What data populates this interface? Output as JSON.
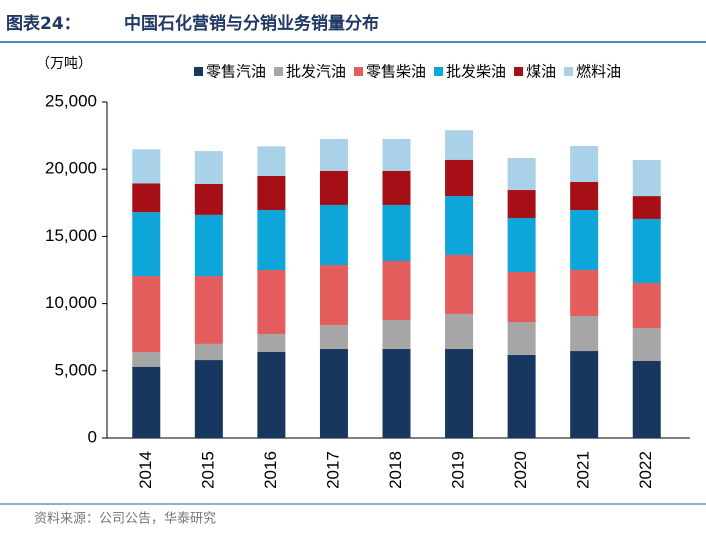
{
  "chart_data": {
    "type": "stacked_bar",
    "figure_label": "图表24：",
    "title": "中国石化营销与分销业务销量分布",
    "y_label": "（万吨）",
    "source": "资料来源：公司公告，华泰研究",
    "categories": [
      "2014",
      "2015",
      "2016",
      "2017",
      "2018",
      "2019",
      "2020",
      "2021",
      "2022"
    ],
    "series": [
      {
        "name": "零售汽油",
        "color": "#17375e",
        "values": [
          5300,
          5800,
          6400,
          6620,
          6620,
          6620,
          6180,
          6470,
          5730
        ]
      },
      {
        "name": "批发汽油",
        "color": "#a6a6a6",
        "values": [
          1100,
          1200,
          1340,
          1780,
          2160,
          2610,
          2450,
          2610,
          2450
        ]
      },
      {
        "name": "零售柴油",
        "color": "#e35d5d",
        "values": [
          5650,
          5050,
          4760,
          4470,
          4390,
          4390,
          3720,
          3420,
          3350
        ]
      },
      {
        "name": "批发柴油",
        "color": "#0ea5d9",
        "values": [
          4750,
          4550,
          4460,
          4470,
          4170,
          4380,
          4020,
          4460,
          4770
        ]
      },
      {
        "name": "煤油",
        "color": "#a50f15",
        "values": [
          2150,
          2300,
          2540,
          2530,
          2530,
          2700,
          2080,
          2090,
          1700
        ]
      },
      {
        "name": "燃料油",
        "color": "#a9d1e7",
        "values": [
          2530,
          2450,
          2200,
          2380,
          2380,
          2200,
          2380,
          2680,
          2680
        ]
      }
    ],
    "ylim": [
      0,
      25000
    ],
    "yticks": [
      0,
      {
        "value": 5000,
        "label": "5,000"
      },
      {
        "value": 10000,
        "label": "10,000"
      },
      {
        "value": 15000,
        "label": "15,000"
      },
      {
        "value": 20000,
        "label": "20,000"
      },
      {
        "value": 25000,
        "label": "25,000"
      }
    ]
  }
}
